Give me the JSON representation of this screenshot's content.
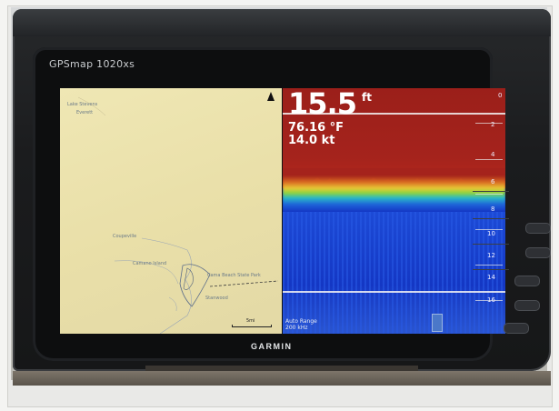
{
  "device": {
    "model": "GPSmap 1020xs",
    "brand": "GARMIN"
  },
  "map": {
    "north_indicator": "north-arrow-icon",
    "labels": [
      "Lake Stevens",
      "Everett",
      "Coupeville",
      "Cama Beach State Park",
      "Camano Island",
      "Stanwood"
    ],
    "scale_label": "5mi"
  },
  "sonar": {
    "depth_value": "15.5",
    "depth_unit": "ft",
    "water_temp": "76.16 °F",
    "speed": "14.0 kt",
    "depth_scale": [
      "0",
      "2",
      "4",
      "6",
      "8",
      "10",
      "12",
      "14",
      "16"
    ],
    "range_mode": "Auto Range",
    "frequency": "200 kHz"
  },
  "colors": {
    "map_land": "#e9dfa8",
    "sonar_water": "#1437c4",
    "sonar_surface_clutter": "#a5231c"
  }
}
